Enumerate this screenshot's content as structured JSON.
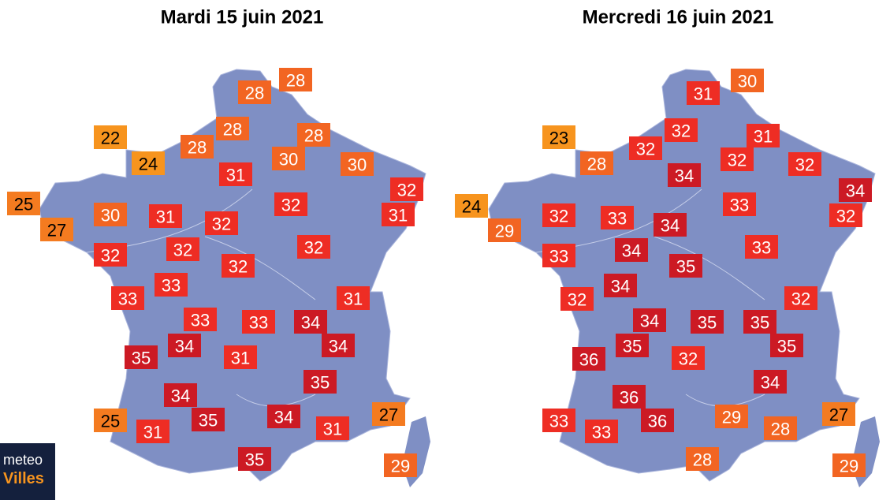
{
  "maps": [
    {
      "title": "Mardi 15 juin 2021",
      "points": [
        {
          "value": 28,
          "color": "#f26522"
        },
        {
          "value": 28,
          "color": "#f26522"
        },
        {
          "value": 22,
          "color": "#f7941e"
        },
        {
          "value": 28,
          "color": "#f26522"
        },
        {
          "value": 28,
          "color": "#f26522"
        },
        {
          "value": 28,
          "color": "#f26522"
        },
        {
          "value": 24,
          "color": "#f7941e"
        },
        {
          "value": 30,
          "color": "#f26522"
        },
        {
          "value": 30,
          "color": "#f26522"
        },
        {
          "value": 31,
          "color": "#ee2d24"
        },
        {
          "value": 32,
          "color": "#ee2d24"
        },
        {
          "value": 25,
          "color": "#f47b20"
        },
        {
          "value": 32,
          "color": "#ee2d24"
        },
        {
          "value": 31,
          "color": "#ee2d24"
        },
        {
          "value": 30,
          "color": "#f26522"
        },
        {
          "value": 31,
          "color": "#ee2d24"
        },
        {
          "value": 32,
          "color": "#ee2d24"
        },
        {
          "value": 27,
          "color": "#f47b20"
        },
        {
          "value": 32,
          "color": "#ee2d24"
        },
        {
          "value": 32,
          "color": "#ee2d24"
        },
        {
          "value": 32,
          "color": "#ee2d24"
        },
        {
          "value": 32,
          "color": "#ee2d24"
        },
        {
          "value": 33,
          "color": "#ee2d24"
        },
        {
          "value": 33,
          "color": "#ee2d24"
        },
        {
          "value": 31,
          "color": "#ee2d24"
        },
        {
          "value": 33,
          "color": "#ee2d24"
        },
        {
          "value": 33,
          "color": "#ee2d24"
        },
        {
          "value": 34,
          "color": "#cc1a24"
        },
        {
          "value": 34,
          "color": "#cc1a24"
        },
        {
          "value": 34,
          "color": "#cc1a24"
        },
        {
          "value": 35,
          "color": "#cc1a24"
        },
        {
          "value": 31,
          "color": "#ee2d24"
        },
        {
          "value": 35,
          "color": "#cc1a24"
        },
        {
          "value": 34,
          "color": "#cc1a24"
        },
        {
          "value": 25,
          "color": "#f47b20"
        },
        {
          "value": 35,
          "color": "#cc1a24"
        },
        {
          "value": 34,
          "color": "#cc1a24"
        },
        {
          "value": 27,
          "color": "#f47b20"
        },
        {
          "value": 31,
          "color": "#ee2d24"
        },
        {
          "value": 31,
          "color": "#ee2d24"
        },
        {
          "value": 35,
          "color": "#cc1a24"
        },
        {
          "value": 29,
          "color": "#f26522"
        }
      ]
    },
    {
      "title": "Mercredi 16 juin 2021",
      "points": [
        {
          "value": 30,
          "color": "#f26522"
        },
        {
          "value": 31,
          "color": "#ee2d24"
        },
        {
          "value": 23,
          "color": "#f7941e"
        },
        {
          "value": 32,
          "color": "#ee2d24"
        },
        {
          "value": 31,
          "color": "#ee2d24"
        },
        {
          "value": 32,
          "color": "#ee2d24"
        },
        {
          "value": 28,
          "color": "#f26522"
        },
        {
          "value": 34,
          "color": "#cc1a24"
        },
        {
          "value": 32,
          "color": "#ee2d24"
        },
        {
          "value": 32,
          "color": "#ee2d24"
        },
        {
          "value": 34,
          "color": "#cc1a24"
        },
        {
          "value": 24,
          "color": "#f7941e"
        },
        {
          "value": 33,
          "color": "#ee2d24"
        },
        {
          "value": 32,
          "color": "#ee2d24"
        },
        {
          "value": 33,
          "color": "#ee2d24"
        },
        {
          "value": 32,
          "color": "#ee2d24"
        },
        {
          "value": 34,
          "color": "#cc1a24"
        },
        {
          "value": 29,
          "color": "#f26522"
        },
        {
          "value": 34,
          "color": "#cc1a24"
        },
        {
          "value": 33,
          "color": "#ee2d24"
        },
        {
          "value": 33,
          "color": "#ee2d24"
        },
        {
          "value": 35,
          "color": "#cc1a24"
        },
        {
          "value": 34,
          "color": "#cc1a24"
        },
        {
          "value": 32,
          "color": "#ee2d24"
        },
        {
          "value": 32,
          "color": "#ee2d24"
        },
        {
          "value": 34,
          "color": "#cc1a24"
        },
        {
          "value": 35,
          "color": "#cc1a24"
        },
        {
          "value": 35,
          "color": "#cc1a24"
        },
        {
          "value": 35,
          "color": "#cc1a24"
        },
        {
          "value": 35,
          "color": "#cc1a24"
        },
        {
          "value": 36,
          "color": "#cc1a24"
        },
        {
          "value": 32,
          "color": "#ee2d24"
        },
        {
          "value": 34,
          "color": "#cc1a24"
        },
        {
          "value": 36,
          "color": "#cc1a24"
        },
        {
          "value": 33,
          "color": "#ee2d24"
        },
        {
          "value": 36,
          "color": "#cc1a24"
        },
        {
          "value": 29,
          "color": "#f26522"
        },
        {
          "value": 27,
          "color": "#f47b20"
        },
        {
          "value": 33,
          "color": "#ee2d24"
        },
        {
          "value": 28,
          "color": "#f26522"
        },
        {
          "value": 28,
          "color": "#f26522"
        },
        {
          "value": 29,
          "color": "#f26522"
        }
      ]
    }
  ],
  "logo": {
    "line1": "meteo",
    "line2": "Villes"
  }
}
